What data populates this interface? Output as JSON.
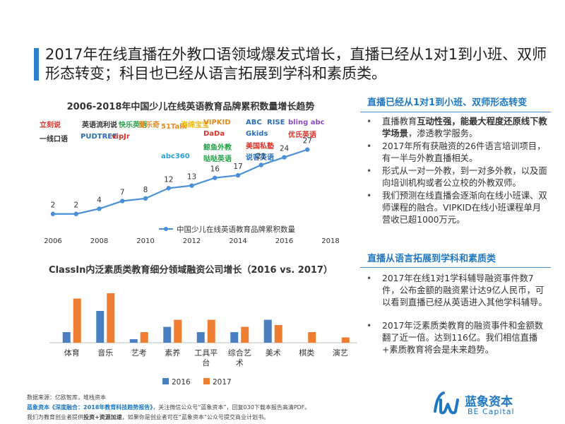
{
  "title": "2017年在线直播在外教口语领域爆发式增长，直播已经从1对1到小班、双师形态转变；科目也已经从语言拓展到学科和素质类。",
  "chart_data": [
    {
      "type": "line",
      "title": "2006-2018年中国少儿在线英语教育品牌累积数量增长趋势",
      "x": [
        2006,
        2007,
        2008,
        2009,
        2010,
        2011,
        2012,
        2013,
        2014,
        2015,
        2016,
        2017
      ],
      "x_ticks": [
        "2006",
        "2008",
        "2010",
        "2012",
        "2014",
        "2016",
        "2018"
      ],
      "series": [
        {
          "name": "中国少儿在线英语教育品牌累积数量",
          "values": [
            2,
            2,
            4,
            7,
            8,
            12,
            13,
            16,
            17,
            21,
            24,
            27
          ],
          "color": "#4a90d9"
        }
      ],
      "legend_position": "bottom",
      "grid": false
    },
    {
      "type": "bar",
      "title": "ClassIn内泛素质类教育细分领域融资公司增长（2016 vs. 2017）",
      "categories": [
        "体育",
        "音乐",
        "艺考",
        "素养",
        "工具平台",
        "综合艺术",
        "美术",
        "棋类",
        "演艺"
      ],
      "series": [
        {
          "name": "2016",
          "values": [
            3,
            9,
            1,
            4.5,
            3,
            3,
            6.5,
            0,
            0
          ],
          "color": "#4a7fc1"
        },
        {
          "name": "2017",
          "values": [
            12.5,
            14,
            3,
            6.5,
            6.5,
            4.5,
            5,
            3,
            1.5
          ],
          "color": "#ed7d31"
        }
      ],
      "ylim": [
        0,
        16
      ],
      "legend_position": "bottom",
      "grid": false
    }
  ],
  "logos": [
    {
      "text": "立刻说",
      "color": "#d9342b"
    },
    {
      "text": "英语流利说",
      "color": "#333333"
    },
    {
      "text": "快乐英语",
      "color": "#2aa24a"
    },
    {
      "text": "爱乐奇",
      "color": "#e58a1e"
    },
    {
      "text": "一线口语",
      "color": "#333333"
    },
    {
      "text": "PUDTREE",
      "color": "#2a6fb8"
    },
    {
      "text": "vipJr",
      "color": "#d9342b"
    },
    {
      "text": "51Talk",
      "color": "#e58a1e"
    },
    {
      "text": "海绵宝宝",
      "color": "#e9b818"
    },
    {
      "text": "VIPKID",
      "color": "#e58a1e"
    },
    {
      "text": "ABC",
      "color": "#2a6fb8"
    },
    {
      "text": "RISE",
      "color": "#2a6fb8"
    },
    {
      "text": "bling abc",
      "color": "#8a4ec1"
    },
    {
      "text": "DaDa",
      "color": "#d9342b"
    },
    {
      "text": "鲸鱼外教",
      "color": "#2aa24a"
    },
    {
      "text": "Gkids",
      "color": "#2a6fb8"
    },
    {
      "text": "优氏英语",
      "color": "#d9342b"
    },
    {
      "text": "美国私塾",
      "color": "#d9342b"
    },
    {
      "text": "abc360",
      "color": "#2a9fd8"
    },
    {
      "text": "哒哒英语",
      "color": "#2aa24a"
    },
    {
      "text": "说客英语",
      "color": "#2a6fb8"
    }
  ],
  "section1": {
    "heading": "直播已经从1对1到小班、双师形态转变",
    "b1_pre": "直播教育",
    "b1_bold": "互动性强，能最大程度还原线下教学场景",
    "b1_post": "，渗透教学服务。",
    "b2": "2017年所有获融资的26件语言培训项目，有一半与外教直播相关。",
    "b3": "形式从一对一外教，到一对多外教，以及面向培训机构或者公立校的外教双师。",
    "b4": "我们预测在线直播会逐渐向在线小班课、双师课程的融合。VIPKID在线小班课程单月营收已超1000万元。"
  },
  "section2": {
    "heading": "直播从语言拓展到学科和素质类",
    "b1": "2017年在线1对1学科辅导融资事件数7件，公布金额的融资累计达9亿人民币，可以看到直播已经从英语进入其他学科辅导。",
    "b2": "2017年泛素质类教育的融资事件和金额数翻了近一倍。达到116亿。我们相信直播+素质教育将会是未来趋势。"
  },
  "footer": {
    "line1": "数据来源：亿欧智库，堆栈资本",
    "line2_hl": "蓝象资本《深度融合：2018年教育科技趋势报告》",
    "line2_rest": "，关注微信公众号“蓝象资本”，回复030下载本报告高清PDF。",
    "line3_pre": "我们为教育创业者提供",
    "line3_bold": "投资+资源加速",
    "line3_post": "，如果你是创业者可在“蓝象资本”公众号提交商业计划书。"
  },
  "brand": {
    "cn": "蓝象资本",
    "en": "BE Capital"
  }
}
